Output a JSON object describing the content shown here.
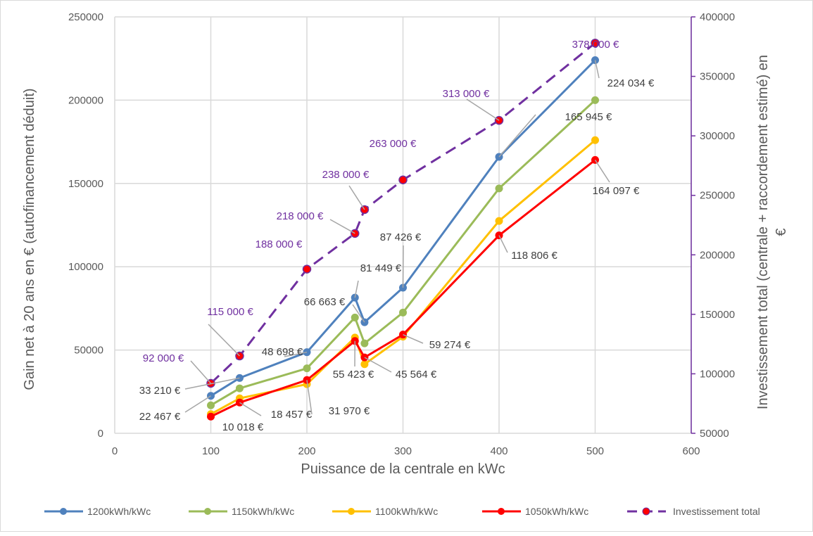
{
  "chart_data": {
    "type": "line",
    "title": "",
    "xlabel": "Puissance de la centrale en kWc",
    "ylabel": "Gain net à 20 ans en € (autofinancement déduit)",
    "y2label": "Investissement total (centrale + raccordement estimé) en €",
    "xlim": [
      0,
      600
    ],
    "ylim": [
      0,
      250000
    ],
    "y2lim": [
      50000,
      400000
    ],
    "xticks": [
      "0",
      "100",
      "200",
      "300",
      "400",
      "500",
      "600"
    ],
    "yticks": [
      "0",
      "50000",
      "100000",
      "150000",
      "200000",
      "250000"
    ],
    "y2ticks": [
      "50000",
      "100000",
      "150000",
      "200000",
      "250000",
      "300000",
      "350000",
      "400000"
    ],
    "grid": true,
    "legend_position": "bottom",
    "x": [
      100,
      130,
      200,
      250,
      260,
      300,
      400,
      500
    ],
    "series": [
      {
        "name": "1200kWh/kWc",
        "color": "#4f81bd",
        "axis": "left",
        "values": [
          22467,
          33210,
          48698,
          81449,
          66663,
          87426,
          165945,
          224034
        ],
        "labels": [
          "22 467 €",
          "33 210 €",
          "48 698 €",
          "81 449 €",
          "66 663 €",
          "87 426 €",
          "165 945 €",
          "224 034 €"
        ]
      },
      {
        "name": "1150kWh/kWc",
        "color": "#9bbb59",
        "axis": "left",
        "values": [
          16800,
          27000,
          39000,
          69500,
          54000,
          72500,
          147000,
          200000
        ],
        "labels": []
      },
      {
        "name": "1100kWh/kWc",
        "color": "#ffc000",
        "axis": "left",
        "values": [
          11500,
          21000,
          29500,
          57500,
          41500,
          58000,
          127500,
          176000
        ],
        "labels": []
      },
      {
        "name": "1050kWh/kWc",
        "color": "#ff0000",
        "axis": "left",
        "values": [
          10018,
          18457,
          31970,
          55423,
          45564,
          59274,
          118806,
          164097
        ],
        "labels": [
          "10 018 €",
          "18 457 €",
          "31 970 €",
          "55 423 €",
          "45 564 €",
          "59 274 €",
          "118 806 €",
          "164 097 €"
        ]
      },
      {
        "name": "Investissement total",
        "color": "#7030a0",
        "marker_color": "#ff0000",
        "axis": "right",
        "dashed": true,
        "values": [
          92000,
          115000,
          188000,
          218000,
          238000,
          263000,
          313000,
          378000
        ],
        "labels": [
          "92 000 €",
          "115 000 €",
          "188 000 €",
          "218 000 €",
          "238 000 €",
          "263 000 €",
          "313 000 €",
          "378 000 €"
        ]
      }
    ]
  }
}
